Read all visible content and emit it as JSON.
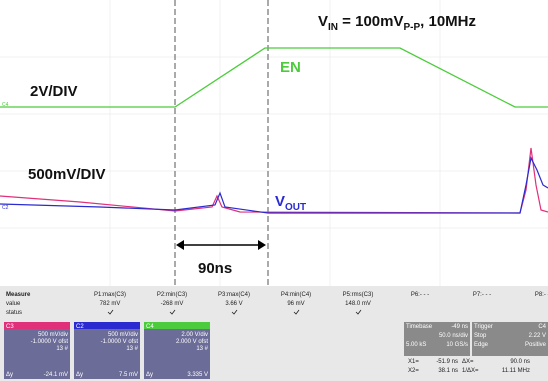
{
  "annotations": {
    "vin": {
      "v": "V",
      "sub": "IN",
      "eq": " = 100mV",
      "sub2": "P-P",
      "rest": ", 10MHz"
    },
    "en": "EN",
    "ch4_scale": "2V/DIV",
    "ch3_scale": "500mV/DIV",
    "vout": {
      "v": "V",
      "sub": "OUT"
    },
    "interval": "90ns"
  },
  "measure": {
    "row_labels": [
      "Measure",
      "value",
      "status"
    ],
    "params": [
      {
        "name": "P1:max(C3)",
        "value": "782 mV"
      },
      {
        "name": "P2:min(C3)",
        "value": "-268 mV"
      },
      {
        "name": "P3:max(C4)",
        "value": "3.66 V"
      },
      {
        "name": "P4:min(C4)",
        "value": "96 mV"
      },
      {
        "name": "P5:rms(C3)",
        "value": "148.0 mV"
      },
      {
        "name": "P6:- - -",
        "value": ""
      },
      {
        "name": "P7:- - -",
        "value": ""
      },
      {
        "name": "P8:- - -",
        "value": ""
      }
    ]
  },
  "channels": [
    {
      "id": "C3",
      "scale": "500 mV/div",
      "offset": "-1.0000 V ofst",
      "count": "13 #",
      "dy_label": "Δy",
      "dy": "-24.1 mV"
    },
    {
      "id": "C2",
      "scale": "500 mV/div",
      "offset": "-1.0000 V ofst",
      "count": "13 #",
      "dy_label": "Δy",
      "dy": "7.5 mV"
    },
    {
      "id": "C4",
      "scale": "2.00 V/div",
      "offset": "2.000 V ofst",
      "count": "13 #",
      "dy_label": "Δy",
      "dy": "3.335 V"
    }
  ],
  "timebase": {
    "label": "Timebase",
    "delay": "-49 ns",
    "div": "50.0 ns/div",
    "samples": "5.00 kS",
    "rate": "10 GS/s"
  },
  "trigger": {
    "label": "Trigger",
    "source": "C4",
    "mode": "Stop",
    "level": "2.22 V",
    "type": "Edge",
    "slope": "Positive"
  },
  "cursors": [
    {
      "k1": "X1=",
      "v1": "-51.9 ns",
      "k2": "ΔX=",
      "v2": "90.0 ns"
    },
    {
      "k1": "X2=",
      "v1": "38.1 ns",
      "k2": "1/ΔX=",
      "v2": "11.11 MHz"
    }
  ]
}
